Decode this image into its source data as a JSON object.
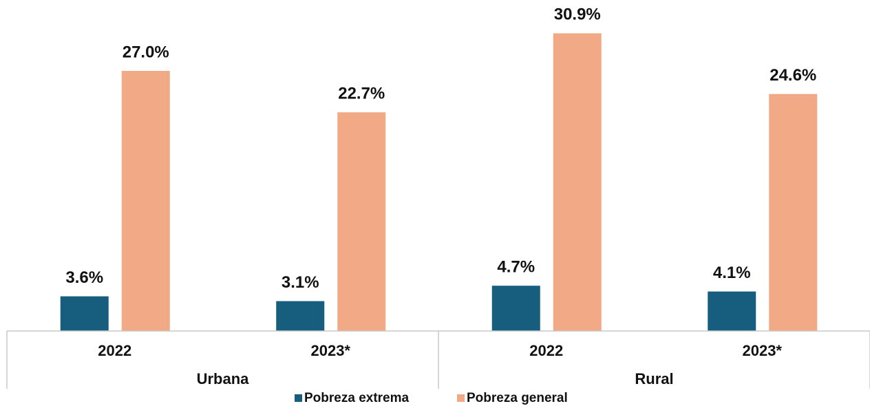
{
  "chart_data": {
    "type": "bar",
    "categories": [
      "2022",
      "2023*",
      "2022",
      "2023*"
    ],
    "group_labels": [
      "Urbana",
      "Rural"
    ],
    "series": [
      {
        "name": "Pobreza extrema",
        "color": "#175e7e",
        "values": [
          3.6,
          3.1,
          4.7,
          4.1
        ],
        "value_labels": [
          "3.6%",
          "3.1%",
          "4.7%",
          "4.1%"
        ]
      },
      {
        "name": "Pobreza general",
        "color": "#f2a985",
        "values": [
          27.0,
          22.7,
          30.9,
          24.6
        ],
        "value_labels": [
          "27.0%",
          "22.7%",
          "30.9%",
          "24.6%"
        ]
      }
    ],
    "ylim": [
      0,
      32
    ],
    "legend": "bottom"
  }
}
